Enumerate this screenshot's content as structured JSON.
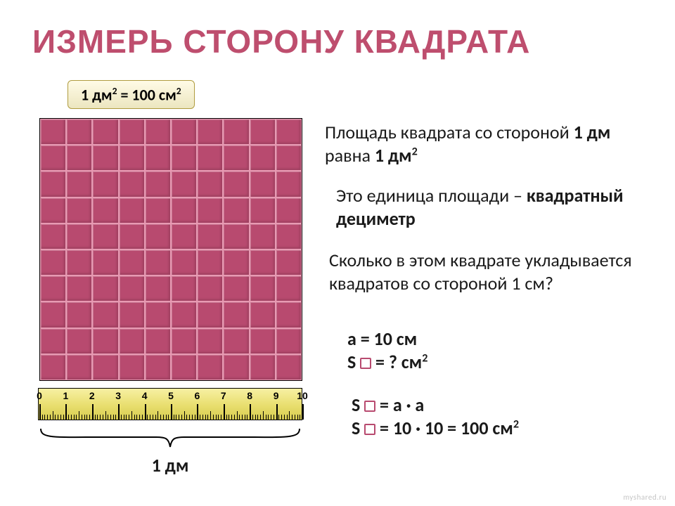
{
  "title": "ИЗМЕРЬ СТОРОНУ КВАДРАТА",
  "badge_html": "1 дм<sup>2</sup> = 100 см<sup>2</sup>",
  "grid": {
    "rows": 10,
    "cols": 10,
    "cell_color": "#b84a6f",
    "cell_border": "#e89ab3",
    "outer_border": "#000000"
  },
  "ruler": {
    "bg_top": "#f7f0a3",
    "bg_bottom": "#d7cc50",
    "cm": 10,
    "minor_per_cm": 5,
    "labels": [
      "0",
      "1",
      "2",
      "3",
      "4",
      "5",
      "6",
      "7",
      "8",
      "9",
      "10"
    ]
  },
  "brace_label": "1 дм",
  "paragraphs": {
    "p1_html": "Площадь квадрата со стороной <b>1 дм</b> равна <b>1 дм<sup>2</sup></b>",
    "p2_html": "Это единица площади – <b>квадратный дециметр</b>",
    "p3_html": "Сколько в этом квадрате укладывается квадратов со стороной 1 см?",
    "p4_line1_html": "a = 10 см",
    "p4_line2_prefix": "S ",
    "p4_line2_suffix_html": " = ? см<sup>2</sup>",
    "p5_line1_prefix": "S ",
    "p5_line1_suffix_html": " = a · a",
    "p5_line2_prefix": "S ",
    "p5_line2_suffix_html": " = 10 · 10 = 100 см<sup>2</sup>"
  },
  "footer": "myshared.ru",
  "colors": {
    "title": "#be4e6e",
    "accent": "#b84a6f",
    "text": "#1a1a1a"
  }
}
